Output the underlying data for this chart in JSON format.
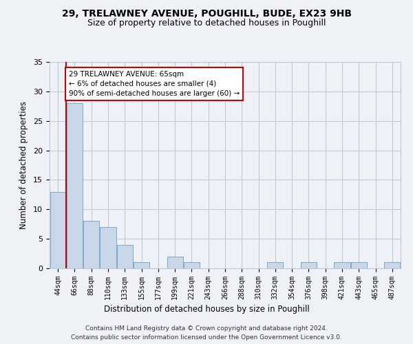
{
  "title_line1": "29, TRELAWNEY AVENUE, POUGHILL, BUDE, EX23 9HB",
  "title_line2": "Size of property relative to detached houses in Poughill",
  "xlabel": "Distribution of detached houses by size in Poughill",
  "ylabel": "Number of detached properties",
  "bar_labels": [
    "44sqm",
    "66sqm",
    "88sqm",
    "110sqm",
    "133sqm",
    "155sqm",
    "177sqm",
    "199sqm",
    "221sqm",
    "243sqm",
    "266sqm",
    "288sqm",
    "310sqm",
    "332sqm",
    "354sqm",
    "376sqm",
    "398sqm",
    "421sqm",
    "443sqm",
    "465sqm",
    "487sqm"
  ],
  "bar_values": [
    13,
    28,
    8,
    7,
    4,
    1,
    0,
    2,
    1,
    0,
    0,
    0,
    0,
    1,
    0,
    1,
    0,
    1,
    1,
    0,
    1
  ],
  "bar_color": "#c8d8e8",
  "bar_edge_color": "#7aaac8",
  "vline_color": "#cc0000",
  "annotation_text": "29 TRELAWNEY AVENUE: 65sqm\n← 6% of detached houses are smaller (4)\n90% of semi-detached houses are larger (60) →",
  "annotation_box_color": "#ffffff",
  "annotation_box_edge_color": "#cc0000",
  "ylim": [
    0,
    35
  ],
  "yticks": [
    0,
    5,
    10,
    15,
    20,
    25,
    30,
    35
  ],
  "footer_line1": "Contains HM Land Registry data © Crown copyright and database right 2024.",
  "footer_line2": "Contains public sector information licensed under the Open Government Licence v3.0.",
  "bg_color": "#eef2f7",
  "plot_bg_color": "#eef2f7",
  "grid_color": "#c0c8d8"
}
